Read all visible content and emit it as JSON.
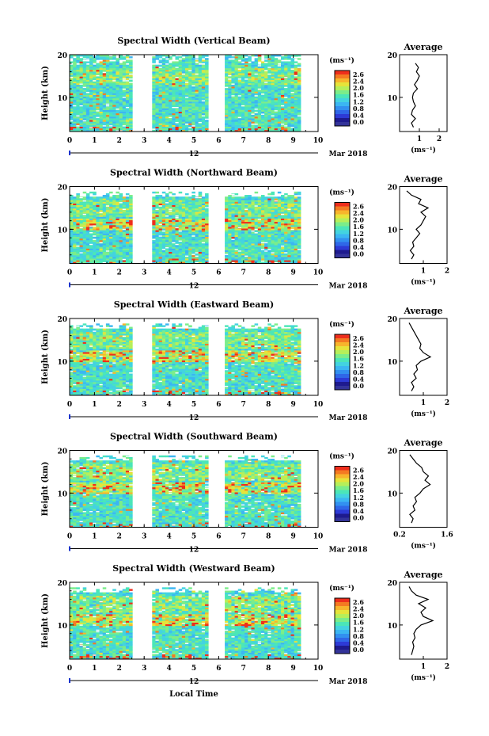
{
  "figure": {
    "xlabel": "Local Time",
    "date_day": "12",
    "date_month_year": "Mar 2018",
    "ylabel": "Height (km)",
    "colorbar_unit": "(ms⁻¹)",
    "average_title": "Average",
    "average_xlabel": "(ms⁻¹)"
  },
  "colors": {
    "colormap": [
      "#1e1a8e",
      "#2d3ad6",
      "#2f67e8",
      "#3290f0",
      "#3bb6f2",
      "#43d3e0",
      "#4be6b8",
      "#7bed8a",
      "#b6ef5a",
      "#e6e43a",
      "#f7b52c",
      "#f47a22",
      "#ee2e1c"
    ],
    "bottom_band": "#333399",
    "axis": "#000000",
    "marker": "#1a33cc"
  },
  "chart_data": [
    {
      "type": "heatmap",
      "title": "Spectral Width (Vertical Beam)",
      "xlim": [
        0,
        10
      ],
      "xticks": [
        0,
        1,
        2,
        3,
        4,
        5,
        6,
        7,
        8,
        9,
        10
      ],
      "ylim": [
        2,
        20
      ],
      "yticks": [
        10,
        20
      ],
      "colorbar_ticks": [
        "2.6",
        "2.4",
        "2.0",
        "1.6",
        "1.2",
        "0.8",
        "0.4",
        "0.0"
      ],
      "data_gaps": [
        [
          2.5,
          3.3
        ],
        [
          5.6,
          6.2
        ]
      ],
      "data_end": 9.3,
      "average": {
        "xlim": [
          0,
          2.4
        ],
        "xticks": [
          1,
          2
        ],
        "ylim": [
          2,
          20
        ],
        "yticks": [
          10,
          20
        ],
        "profile": [
          [
            0.7,
            3
          ],
          [
            0.6,
            4
          ],
          [
            0.8,
            5
          ],
          [
            0.6,
            6
          ],
          [
            0.65,
            7
          ],
          [
            0.8,
            8
          ],
          [
            0.7,
            9
          ],
          [
            0.65,
            10
          ],
          [
            0.7,
            11
          ],
          [
            0.9,
            12
          ],
          [
            0.75,
            13
          ],
          [
            0.9,
            14
          ],
          [
            1.0,
            15
          ],
          [
            0.85,
            16
          ],
          [
            0.95,
            17
          ],
          [
            0.8,
            18
          ]
        ]
      }
    },
    {
      "type": "heatmap",
      "title": "Spectral Width (Northward Beam)",
      "xlim": [
        0,
        10
      ],
      "xticks": [
        0,
        1,
        2,
        3,
        4,
        5,
        6,
        7,
        8,
        9,
        10
      ],
      "ylim": [
        2,
        20
      ],
      "yticks": [
        10,
        20
      ],
      "colorbar_ticks": [
        "2.6",
        "2.4",
        "2.0",
        "1.6",
        "1.2",
        "0.8",
        "0.4",
        "0.0"
      ],
      "data_gaps": [
        [
          2.5,
          3.3
        ],
        [
          5.6,
          6.2
        ]
      ],
      "data_end": 9.3,
      "average": {
        "xlim": [
          0,
          2
        ],
        "xticks": [
          1,
          2
        ],
        "ylim": [
          2,
          20
        ],
        "yticks": [
          10,
          20
        ],
        "profile": [
          [
            0.5,
            3
          ],
          [
            0.6,
            4
          ],
          [
            0.45,
            5
          ],
          [
            0.6,
            6
          ],
          [
            0.55,
            7
          ],
          [
            0.7,
            8
          ],
          [
            0.85,
            9
          ],
          [
            0.7,
            10
          ],
          [
            0.9,
            11
          ],
          [
            1.0,
            12
          ],
          [
            1.1,
            13
          ],
          [
            0.9,
            14
          ],
          [
            1.2,
            15
          ],
          [
            0.8,
            16
          ],
          [
            0.9,
            17
          ],
          [
            0.5,
            18
          ],
          [
            0.3,
            19
          ]
        ]
      }
    },
    {
      "type": "heatmap",
      "title": "Spectral Width (Eastward Beam)",
      "xlim": [
        0,
        10
      ],
      "xticks": [
        0,
        1,
        2,
        3,
        4,
        5,
        6,
        7,
        8,
        9,
        10
      ],
      "ylim": [
        2,
        20
      ],
      "yticks": [
        10,
        20
      ],
      "colorbar_ticks": [
        "2.6",
        "2.4",
        "2.0",
        "1.6",
        "1.2",
        "0.8",
        "0.4",
        "0.0"
      ],
      "data_gaps": [
        [
          2.5,
          3.3
        ],
        [
          5.6,
          6.2
        ]
      ],
      "data_end": 9.3,
      "average": {
        "xlim": [
          0,
          2
        ],
        "xticks": [
          1,
          2
        ],
        "ylim": [
          2,
          20
        ],
        "yticks": [
          10,
          20
        ],
        "profile": [
          [
            0.5,
            3
          ],
          [
            0.6,
            4
          ],
          [
            0.5,
            5
          ],
          [
            0.7,
            6
          ],
          [
            0.6,
            7
          ],
          [
            0.75,
            8
          ],
          [
            0.7,
            9
          ],
          [
            0.9,
            10
          ],
          [
            1.3,
            11
          ],
          [
            1.0,
            12
          ],
          [
            0.85,
            13
          ],
          [
            0.9,
            14
          ],
          [
            0.8,
            15
          ],
          [
            0.7,
            16
          ],
          [
            0.6,
            17
          ],
          [
            0.5,
            18
          ],
          [
            0.4,
            19
          ]
        ]
      }
    },
    {
      "type": "heatmap",
      "title": "Spectral Width (Southward Beam)",
      "xlim": [
        0,
        10
      ],
      "xticks": [
        0,
        1,
        2,
        3,
        4,
        5,
        6,
        7,
        8,
        9,
        10
      ],
      "ylim": [
        2,
        20
      ],
      "yticks": [
        10,
        20
      ],
      "colorbar_ticks": [
        "2.6",
        "2.4",
        "2.0",
        "1.6",
        "1.2",
        "0.8",
        "0.4",
        "0.0"
      ],
      "data_gaps": [
        [
          2.5,
          3.3
        ],
        [
          5.6,
          6.2
        ]
      ],
      "data_end": 9.3,
      "average": {
        "xlim": [
          0.2,
          1.6
        ],
        "xticks": [
          0.2,
          1.6
        ],
        "xticklabels": [
          "0.2",
          "1.6"
        ],
        "ylim": [
          2,
          20
        ],
        "yticks": [
          10,
          20
        ],
        "profile": [
          [
            0.55,
            3
          ],
          [
            0.6,
            4
          ],
          [
            0.5,
            5
          ],
          [
            0.65,
            6
          ],
          [
            0.6,
            7
          ],
          [
            0.7,
            8
          ],
          [
            0.65,
            9
          ],
          [
            0.8,
            10
          ],
          [
            0.9,
            11
          ],
          [
            1.1,
            12
          ],
          [
            0.95,
            13
          ],
          [
            1.05,
            14
          ],
          [
            0.9,
            15
          ],
          [
            0.85,
            16
          ],
          [
            0.7,
            17
          ],
          [
            0.6,
            18
          ],
          [
            0.5,
            19
          ]
        ]
      }
    },
    {
      "type": "heatmap",
      "title": "Spectral Width (Westward Beam)",
      "xlim": [
        0,
        10
      ],
      "xticks": [
        0,
        1,
        2,
        3,
        4,
        5,
        6,
        7,
        8,
        9,
        10
      ],
      "ylim": [
        2,
        20
      ],
      "yticks": [
        10,
        20
      ],
      "colorbar_ticks": [
        "2.6",
        "2.4",
        "2.0",
        "1.6",
        "1.2",
        "0.8",
        "0.4",
        "0.0"
      ],
      "data_gaps": [
        [
          2.5,
          3.3
        ],
        [
          5.6,
          6.2
        ]
      ],
      "data_end": 9.3,
      "average": {
        "xlim": [
          0,
          2
        ],
        "xticks": [
          1,
          2
        ],
        "ylim": [
          2,
          20
        ],
        "yticks": [
          10,
          20
        ],
        "profile": [
          [
            0.5,
            3
          ],
          [
            0.55,
            4
          ],
          [
            0.6,
            5
          ],
          [
            0.55,
            6
          ],
          [
            0.65,
            7
          ],
          [
            0.6,
            8
          ],
          [
            0.7,
            9
          ],
          [
            0.9,
            10
          ],
          [
            1.4,
            11
          ],
          [
            1.0,
            12
          ],
          [
            0.9,
            13
          ],
          [
            1.1,
            14
          ],
          [
            0.8,
            15
          ],
          [
            1.2,
            16
          ],
          [
            0.7,
            17
          ],
          [
            0.5,
            18
          ],
          [
            0.4,
            19
          ]
        ]
      }
    }
  ]
}
